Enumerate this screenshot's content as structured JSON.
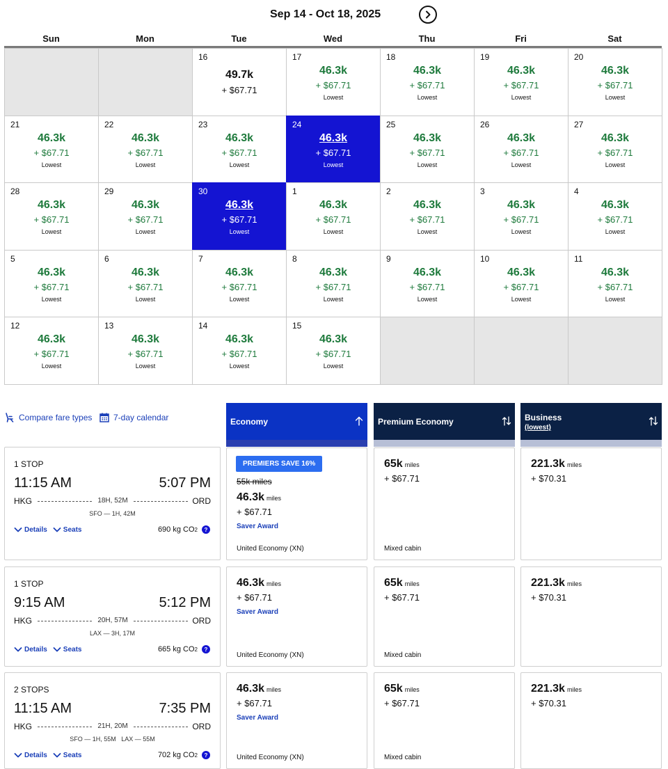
{
  "calendar": {
    "title": "Sep 14 - Oct 18, 2025",
    "weekdays": [
      "Sun",
      "Mon",
      "Tue",
      "Wed",
      "Thu",
      "Fri",
      "Sat"
    ],
    "cells": [
      {
        "empty": true
      },
      {
        "empty": true
      },
      {
        "day": "16",
        "miles": "49.7k",
        "price": "+ $67.71",
        "note": ""
      },
      {
        "day": "17",
        "miles": "46.3k",
        "price": "+ $67.71",
        "note": "Lowest"
      },
      {
        "day": "18",
        "miles": "46.3k",
        "price": "+ $67.71",
        "note": "Lowest"
      },
      {
        "day": "19",
        "miles": "46.3k",
        "price": "+ $67.71",
        "note": "Lowest"
      },
      {
        "day": "20",
        "miles": "46.3k",
        "price": "+ $67.71",
        "note": "Lowest"
      },
      {
        "day": "21",
        "miles": "46.3k",
        "price": "+ $67.71",
        "note": "Lowest"
      },
      {
        "day": "22",
        "miles": "46.3k",
        "price": "+ $67.71",
        "note": "Lowest"
      },
      {
        "day": "23",
        "miles": "46.3k",
        "price": "+ $67.71",
        "note": "Lowest"
      },
      {
        "day": "24",
        "miles": "46.3k",
        "price": "+ $67.71",
        "note": "Lowest",
        "selected": true
      },
      {
        "day": "25",
        "miles": "46.3k",
        "price": "+ $67.71",
        "note": "Lowest"
      },
      {
        "day": "26",
        "miles": "46.3k",
        "price": "+ $67.71",
        "note": "Lowest"
      },
      {
        "day": "27",
        "miles": "46.3k",
        "price": "+ $67.71",
        "note": "Lowest"
      },
      {
        "day": "28",
        "miles": "46.3k",
        "price": "+ $67.71",
        "note": "Lowest"
      },
      {
        "day": "29",
        "miles": "46.3k",
        "price": "+ $67.71",
        "note": "Lowest"
      },
      {
        "day": "30",
        "miles": "46.3k",
        "price": "+ $67.71",
        "note": "Lowest",
        "selected": true
      },
      {
        "day": "1",
        "miles": "46.3k",
        "price": "+ $67.71",
        "note": "Lowest"
      },
      {
        "day": "2",
        "miles": "46.3k",
        "price": "+ $67.71",
        "note": "Lowest"
      },
      {
        "day": "3",
        "miles": "46.3k",
        "price": "+ $67.71",
        "note": "Lowest"
      },
      {
        "day": "4",
        "miles": "46.3k",
        "price": "+ $67.71",
        "note": "Lowest"
      },
      {
        "day": "5",
        "miles": "46.3k",
        "price": "+ $67.71",
        "note": "Lowest"
      },
      {
        "day": "6",
        "miles": "46.3k",
        "price": "+ $67.71",
        "note": "Lowest"
      },
      {
        "day": "7",
        "miles": "46.3k",
        "price": "+ $67.71",
        "note": "Lowest"
      },
      {
        "day": "8",
        "miles": "46.3k",
        "price": "+ $67.71",
        "note": "Lowest"
      },
      {
        "day": "9",
        "miles": "46.3k",
        "price": "+ $67.71",
        "note": "Lowest"
      },
      {
        "day": "10",
        "miles": "46.3k",
        "price": "+ $67.71",
        "note": "Lowest"
      },
      {
        "day": "11",
        "miles": "46.3k",
        "price": "+ $67.71",
        "note": "Lowest"
      },
      {
        "day": "12",
        "miles": "46.3k",
        "price": "+ $67.71",
        "note": "Lowest"
      },
      {
        "day": "13",
        "miles": "46.3k",
        "price": "+ $67.71",
        "note": "Lowest"
      },
      {
        "day": "14",
        "miles": "46.3k",
        "price": "+ $67.71",
        "note": "Lowest"
      },
      {
        "day": "15",
        "miles": "46.3k",
        "price": "+ $67.71",
        "note": "Lowest"
      },
      {
        "empty": true
      },
      {
        "empty": true
      },
      {
        "empty": true
      }
    ]
  },
  "tools": {
    "compare_label": "Compare fare types",
    "calendar_label": "7-day calendar"
  },
  "cabins": {
    "economy": {
      "name": "Economy"
    },
    "premium": {
      "name": "Premium Economy"
    },
    "business": {
      "name": "Business",
      "sub": "(lowest)"
    }
  },
  "labels": {
    "details": "Details",
    "seats": "Seats",
    "co2_unit": "kg CO",
    "co2_sub": "2",
    "help": "?",
    "miles_unit": "miles"
  },
  "flights": [
    {
      "stops": "1 STOP",
      "depart": "11:15 AM",
      "arrive": "5:07 PM",
      "origin": "HKG",
      "destination": "ORD",
      "duration": "18H, 52M",
      "connections": "SFO — 1H, 42M",
      "co2": "690",
      "economy": {
        "badge": "PREMIERS SAVE 16%",
        "original": "55k miles",
        "miles": "46.3k",
        "tax": "+ $67.71",
        "tag": "Saver Award",
        "cabin": "United Economy (XN)"
      },
      "premium": {
        "miles": "65k",
        "tax": "+ $67.71",
        "cabin": "Mixed cabin"
      },
      "business": {
        "miles": "221.3k",
        "tax": "+ $70.31"
      }
    },
    {
      "stops": "1 STOP",
      "depart": "9:15 AM",
      "arrive": "5:12 PM",
      "origin": "HKG",
      "destination": "ORD",
      "duration": "20H, 57M",
      "connections": "LAX — 3H, 17M",
      "co2": "665",
      "economy": {
        "miles": "46.3k",
        "tax": "+ $67.71",
        "tag": "Saver Award",
        "cabin": "United Economy (XN)"
      },
      "premium": {
        "miles": "65k",
        "tax": "+ $67.71",
        "cabin": "Mixed cabin"
      },
      "business": {
        "miles": "221.3k",
        "tax": "+ $70.31"
      }
    },
    {
      "stops": "2 STOPS",
      "depart": "11:15 AM",
      "arrive": "7:35 PM",
      "origin": "HKG",
      "destination": "ORD",
      "duration": "21H, 20M",
      "connections": "SFO — 1H, 55M   LAX — 55M",
      "co2": "702",
      "economy": {
        "miles": "46.3k",
        "tax": "+ $67.71",
        "tag": "Saver Award",
        "cabin": "United Economy (XN)"
      },
      "premium": {
        "miles": "65k",
        "tax": "+ $67.71",
        "cabin": "Mixed cabin"
      },
      "business": {
        "miles": "221.3k",
        "tax": "+ $70.31"
      }
    }
  ]
}
